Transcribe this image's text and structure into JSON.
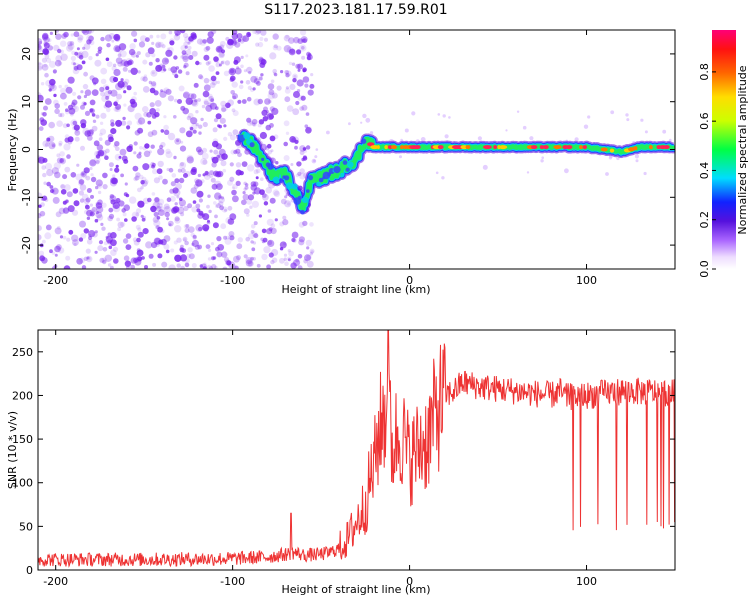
{
  "title": "S117.2023.181.17.59.R01",
  "colors": {
    "snr_line": "#ee3333",
    "spectrogram_speckle": "#7722ee",
    "spectrogram_core": "#ff2255"
  },
  "chart_data": [
    {
      "type": "heatmap",
      "xlabel": "Height of straight line (km)",
      "ylabel": "Frequency (Hz)",
      "xlim": [
        -210,
        150
      ],
      "ylim": [
        -25,
        25
      ],
      "xticks": [
        -200,
        -100,
        0,
        100
      ],
      "yticks": [
        -20,
        -10,
        0,
        10,
        20
      ],
      "colorbar": {
        "label": "Normalized spectral amplitude",
        "range": [
          0,
          0.97
        ],
        "ticks": [
          "0.0",
          "0.2",
          "0.4",
          "0.6",
          "0.8"
        ],
        "colormap": "rainbow (white at 0, violet, blue, cyan, green, yellow, orange, red, magenta at max)"
      },
      "noise_region": {
        "x": [
          -210,
          -55
        ],
        "frequency": [
          -25,
          25
        ],
        "amplitude": "0.1-0.3 scattered"
      },
      "signal_track": [
        {
          "x": -95,
          "frequency": 2.5
        },
        {
          "x": -90,
          "frequency": 1.5
        },
        {
          "x": -85,
          "frequency": -1
        },
        {
          "x": -80,
          "frequency": -4
        },
        {
          "x": -75,
          "frequency": -6
        },
        {
          "x": -70,
          "frequency": -5
        },
        {
          "x": -65,
          "frequency": -9
        },
        {
          "x": -60,
          "frequency": -12
        },
        {
          "x": -55,
          "frequency": -6
        },
        {
          "x": -50,
          "frequency": -6
        },
        {
          "x": -45,
          "frequency": -5
        },
        {
          "x": -40,
          "frequency": -4.5
        },
        {
          "x": -35,
          "frequency": -3
        },
        {
          "x": -30,
          "frequency": -2
        },
        {
          "x": -25,
          "frequency": 2
        },
        {
          "x": -20,
          "frequency": 0.5
        },
        {
          "x": -10,
          "frequency": 0.5
        },
        {
          "x": 0,
          "frequency": 0.5
        },
        {
          "x": 50,
          "frequency": 0.5
        },
        {
          "x": 100,
          "frequency": 0.5
        },
        {
          "x": 120,
          "frequency": -0.5
        },
        {
          "x": 130,
          "frequency": 0.5
        },
        {
          "x": 150,
          "frequency": 0.5
        }
      ]
    },
    {
      "type": "line",
      "xlabel": "Height of straight line (km)",
      "ylabel": "SNR (10 * v/v)",
      "xlim": [
        -210,
        150
      ],
      "ylim": [
        0,
        275
      ],
      "xticks": [
        -200,
        -100,
        0,
        100
      ],
      "yticks": [
        0,
        50,
        100,
        150,
        200,
        250
      ],
      "series": [
        {
          "x": [
            -210,
            -150,
            -100,
            -80,
            -70,
            -65,
            -60,
            -50,
            -45,
            -40,
            -35,
            -30,
            -25,
            -22,
            -20,
            -18,
            -15,
            -12,
            -10,
            -8,
            -5,
            -2,
            0,
            5,
            10,
            15,
            20,
            25,
            30,
            40,
            60,
            80,
            85,
            88,
            100,
            120,
            150
          ],
          "y": [
            12,
            12,
            13,
            15,
            18,
            20,
            17,
            18,
            20,
            25,
            35,
            55,
            75,
            105,
            120,
            150,
            175,
            190,
            135,
            150,
            160,
            140,
            125,
            140,
            150,
            180,
            200,
            205,
            215,
            210,
            205,
            200,
            205,
            198,
            200,
            205,
            203
          ]
        }
      ],
      "annotations": [
        {
          "x": -67,
          "y": 65,
          "note": "spike"
        },
        {
          "x": -12,
          "y": 275,
          "note": "spike"
        },
        {
          "x": 88,
          "y": 45,
          "note": "start of periodic drop-outs"
        }
      ]
    }
  ]
}
